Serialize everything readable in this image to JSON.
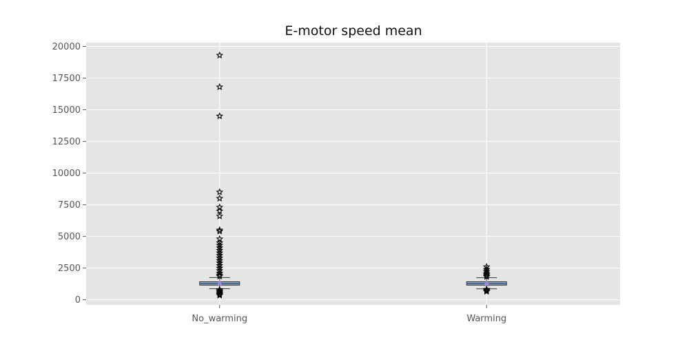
{
  "chart_data": {
    "type": "box",
    "title": "E-motor speed mean",
    "xlabel": "",
    "ylabel": "",
    "categories": [
      "No_warming",
      "Warming"
    ],
    "ylim": [
      -400,
      20300
    ],
    "yticks": [
      0,
      2500,
      5000,
      7500,
      10000,
      12500,
      15000,
      17500,
      20000
    ],
    "grid": true,
    "boxes": [
      {
        "name": "No_warming",
        "q1": 1150,
        "median": 1270,
        "q3": 1420,
        "whisker_low": 870,
        "whisker_high": 1750,
        "mean": 1300,
        "outliers": [
          19300,
          16800,
          14500,
          8500,
          8000,
          7300,
          7000,
          6600,
          5500,
          5400,
          4800,
          4500,
          4300,
          4100,
          3900,
          3700,
          3500,
          3300,
          3100,
          2900,
          2700,
          2500,
          2300,
          2100,
          1950,
          1850,
          800,
          720,
          640,
          560,
          480,
          400,
          340
        ]
      },
      {
        "name": "Warming",
        "q1": 1150,
        "median": 1270,
        "q3": 1420,
        "whisker_low": 860,
        "whisker_high": 1740,
        "mean": 1270,
        "outliers": [
          2600,
          2400,
          2250,
          2100,
          2000,
          1900,
          1820,
          820,
          760,
          700,
          650
        ]
      }
    ],
    "colors": {
      "background": "#e5e5e5",
      "grid": "#ffffff",
      "box_fill": "#8ea7c5",
      "box_edge": "#333333",
      "mean_marker": "#9c8fd6",
      "outlier_edge": "#000000"
    }
  }
}
